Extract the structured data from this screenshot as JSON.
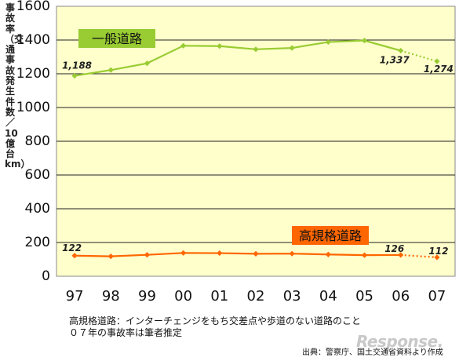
{
  "chart_data": {
    "type": "line",
    "ylabel": "事故率（交通事故発生件数／10億台km）",
    "ylim": [
      0,
      1600
    ],
    "yticks": [
      0,
      200,
      400,
      600,
      800,
      1000,
      1200,
      1400,
      1600
    ],
    "categories": [
      "97",
      "98",
      "99",
      "00",
      "01",
      "02",
      "03",
      "04",
      "05",
      "06",
      "07"
    ],
    "series": [
      {
        "name": "一般道路",
        "color": "#99cc33",
        "values": [
          1188,
          1222,
          1262,
          1366,
          1364,
          1345,
          1353,
          1388,
          1397,
          1337,
          1274
        ],
        "estimated_last": true,
        "labels": [
          {
            "index": 0,
            "text": "1,188"
          },
          {
            "index": 9,
            "text": "1,337"
          },
          {
            "index": 10,
            "text": "1,274"
          }
        ]
      },
      {
        "name": "高規格道路",
        "color": "#ff6600",
        "values": [
          122,
          118,
          127,
          138,
          137,
          133,
          134,
          129,
          125,
          126,
          112
        ],
        "estimated_last": true,
        "labels": [
          {
            "index": 0,
            "text": "122"
          },
          {
            "index": 9,
            "text": "126"
          },
          {
            "index": 10,
            "text": "112"
          }
        ]
      }
    ],
    "plot_background": "#ffffcc",
    "grid": true
  },
  "notes": [
    "高規格道路：インターチェンジをもち交差点や歩道のない道路のこと",
    "０７年の事故率は筆者推定"
  ],
  "source": "出典：警察庁、国土交通省資料より作成",
  "watermark": "Response."
}
